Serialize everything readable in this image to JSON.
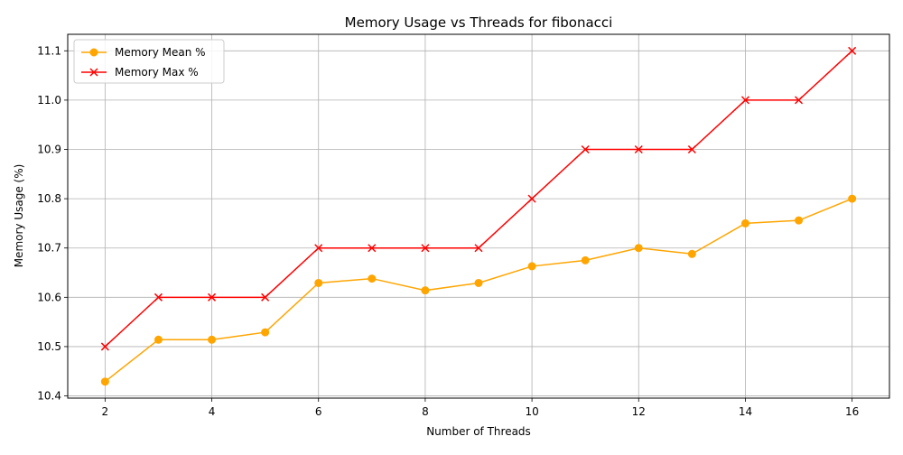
{
  "chart_data": {
    "type": "line",
    "title": "Memory Usage vs Threads for fibonacci",
    "xlabel": "Number of Threads",
    "ylabel": "Memory Usage (%)",
    "x": [
      2,
      3,
      4,
      5,
      6,
      7,
      8,
      9,
      10,
      11,
      12,
      13,
      14,
      15,
      16
    ],
    "series": [
      {
        "name": "Memory Mean %",
        "color": "#ffa500",
        "marker": "circle",
        "values": [
          10.429,
          10.514,
          10.514,
          10.529,
          10.629,
          10.638,
          10.614,
          10.629,
          10.663,
          10.675,
          10.7,
          10.688,
          10.75,
          10.756,
          10.8
        ]
      },
      {
        "name": "Memory Max %",
        "color": "#ff0000",
        "marker": "x",
        "values": [
          10.5,
          10.6,
          10.6,
          10.6,
          10.7,
          10.7,
          10.7,
          10.7,
          10.8,
          10.9,
          10.9,
          10.9,
          11.0,
          11.0,
          11.1
        ]
      }
    ],
    "xticks": [
      2,
      4,
      6,
      8,
      10,
      12,
      14,
      16
    ],
    "yticks": [
      "10.4",
      "10.5",
      "10.6",
      "10.7",
      "10.8",
      "10.9",
      "11.0",
      "11.1"
    ],
    "xlim": [
      1.3,
      16.7
    ],
    "ylim": [
      10.3955,
      11.1335
    ],
    "grid": true,
    "legend_position": "top-left"
  }
}
